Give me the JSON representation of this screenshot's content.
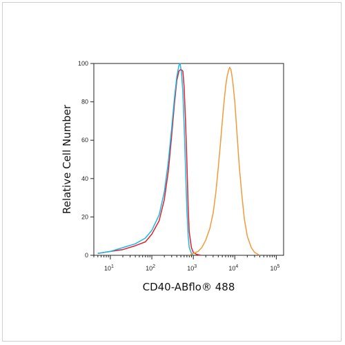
{
  "chart_data": {
    "type": "line",
    "title": "",
    "xlabel": "CD40-ABflo® 488",
    "ylabel": "Relative Cell Number",
    "x_scale": "log",
    "xlim": [
      4,
      150000
    ],
    "ylim": [
      0,
      100
    ],
    "x_ticks": [
      {
        "value": 10,
        "label": "10",
        "exp": "1"
      },
      {
        "value": 100,
        "label": "10",
        "exp": "2"
      },
      {
        "value": 1000,
        "label": "10",
        "exp": "3"
      },
      {
        "value": 10000,
        "label": "10",
        "exp": "4"
      },
      {
        "value": 100000,
        "label": "10",
        "exp": "5"
      }
    ],
    "y_ticks": [
      0,
      20,
      40,
      60,
      80,
      100
    ],
    "grid": false,
    "series": [
      {
        "color": "#e0202a",
        "x": [
          5,
          10,
          20,
          40,
          70,
          100,
          150,
          200,
          250,
          300,
          350,
          400,
          450,
          500,
          560,
          600,
          650,
          700,
          750,
          800,
          900,
          1000,
          1200,
          1500
        ],
        "y": [
          1,
          2,
          3,
          5,
          7,
          11,
          18,
          29,
          44,
          62,
          79,
          91,
          96,
          97,
          96,
          88,
          70,
          48,
          25,
          12,
          4,
          1.5,
          0.5,
          0
        ]
      },
      {
        "color": "#1fb6e6",
        "x": [
          5,
          10,
          20,
          40,
          70,
          100,
          150,
          200,
          250,
          300,
          350,
          400,
          450,
          480,
          520,
          560,
          600,
          650,
          700,
          750,
          800,
          900,
          1000
        ],
        "y": [
          1,
          2,
          4,
          6,
          9,
          13,
          21,
          33,
          49,
          66,
          82,
          93,
          99,
          100,
          95,
          85,
          68,
          45,
          23,
          10,
          4,
          1,
          0
        ]
      },
      {
        "color": "#f09a3a",
        "x": [
          800,
          1000,
          1300,
          1600,
          2000,
          2500,
          3000,
          3500,
          4000,
          4500,
          5000,
          5500,
          6000,
          6500,
          7000,
          7500,
          8000,
          8500,
          9000,
          10000,
          11000,
          12000,
          13000,
          15000,
          17000,
          20000,
          25000,
          30000,
          40000
        ],
        "y": [
          0,
          1,
          2,
          4,
          8,
          14,
          22,
          33,
          46,
          58,
          70,
          80,
          88,
          93,
          96,
          98,
          97,
          94,
          90,
          80,
          67,
          55,
          45,
          30,
          19,
          10,
          4,
          1.5,
          0
        ]
      }
    ]
  }
}
